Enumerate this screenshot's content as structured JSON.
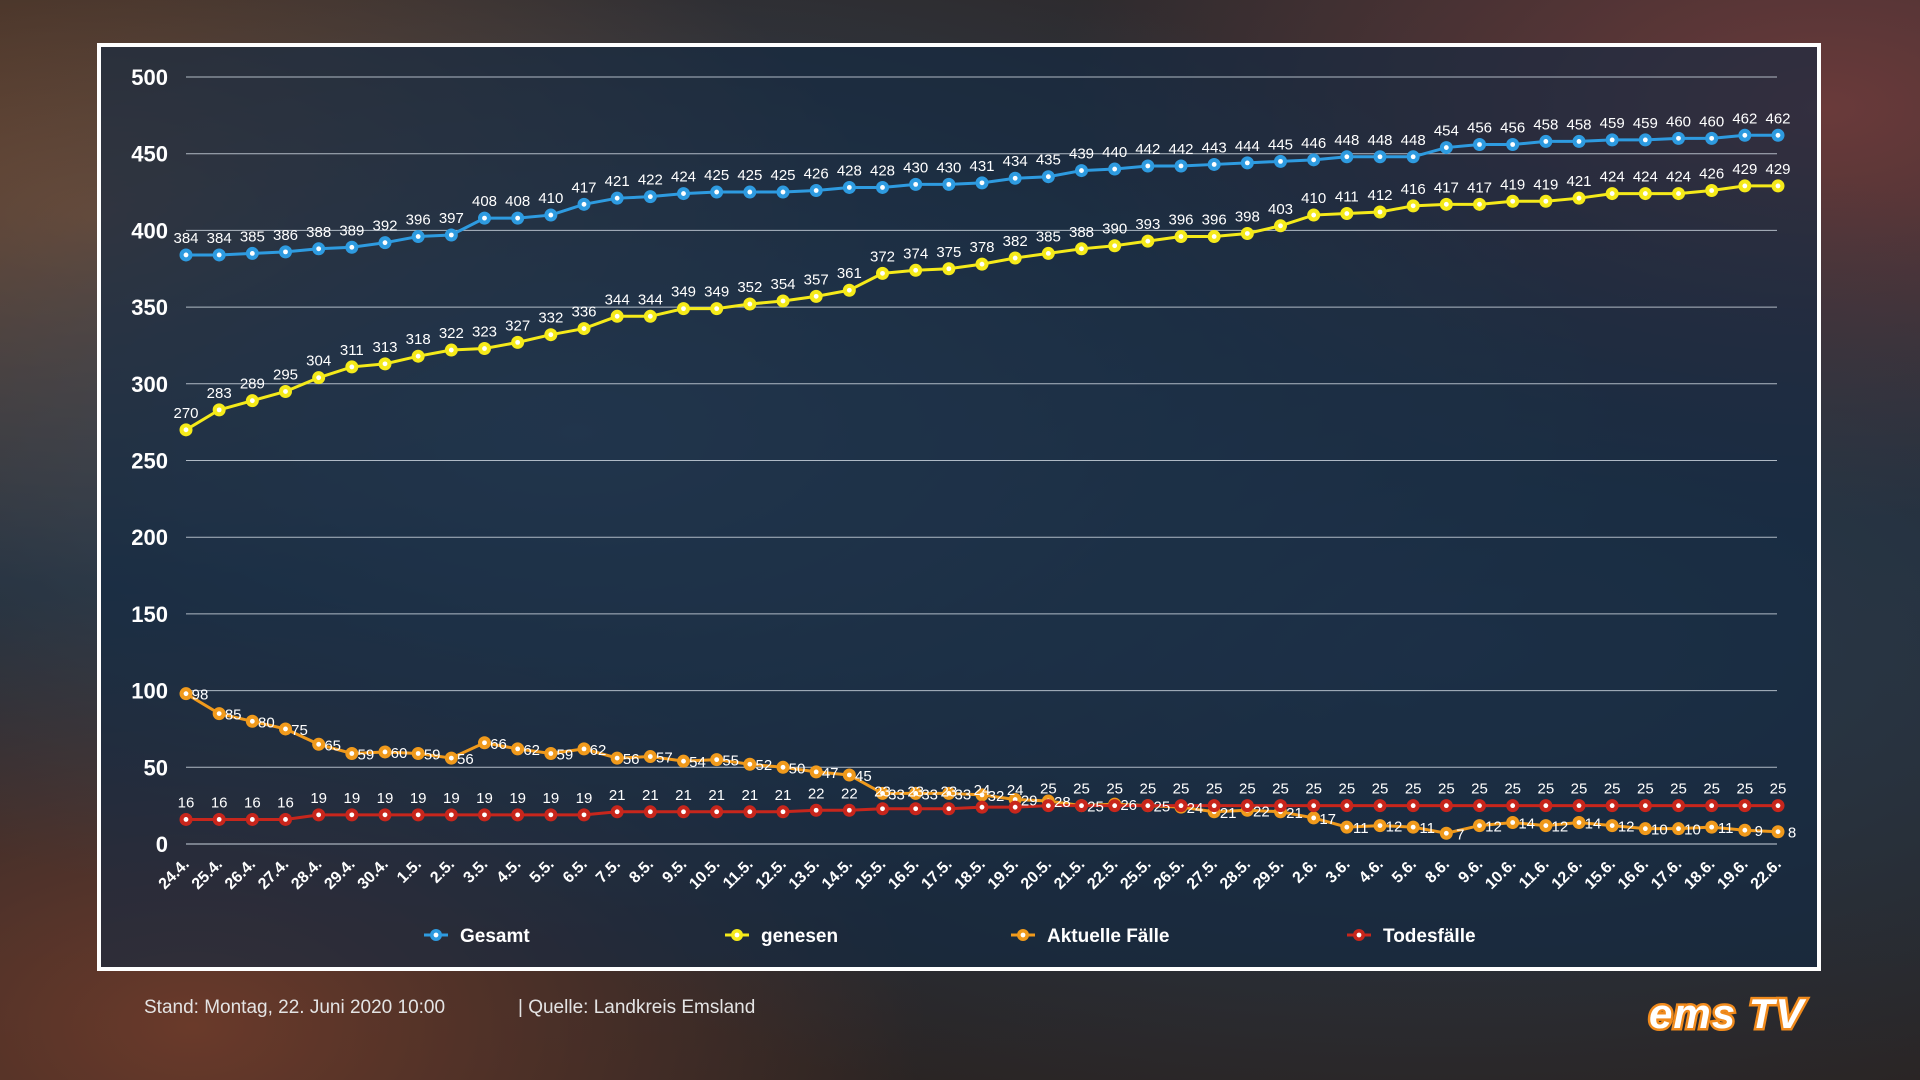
{
  "chart_data": {
    "type": "line",
    "categories": [
      "24.4.",
      "25.4.",
      "26.4.",
      "27.4.",
      "28.4.",
      "29.4.",
      "30.4.",
      "1.5.",
      "2.5.",
      "3.5.",
      "4.5.",
      "5.5.",
      "6.5.",
      "7.5.",
      "8.5.",
      "9.5.",
      "10.5.",
      "11.5.",
      "12.5.",
      "13.5.",
      "14.5.",
      "15.5.",
      "16.5.",
      "17.5.",
      "18.5.",
      "19.5.",
      "20.5.",
      "21.5.",
      "22.5.",
      "25.5.",
      "26.5.",
      "27.5.",
      "28.5.",
      "29.5.",
      "2.6.",
      "3.6.",
      "4.6.",
      "5.6.",
      "8.6.",
      "9.6.",
      "10.6.",
      "11.6.",
      "12.6.",
      "15.6.",
      "16.6.",
      "17.6.",
      "18.6.",
      "19.6.",
      "22.6."
    ],
    "ylim": [
      0,
      500
    ],
    "yticks": [
      0,
      50,
      100,
      150,
      200,
      250,
      300,
      350,
      400,
      450,
      500
    ],
    "grid": true,
    "legend_position": "bottom",
    "series": [
      {
        "name": "Gesamt",
        "color": "#2e9be0",
        "values": [
          384,
          384,
          385,
          386,
          388,
          389,
          392,
          396,
          397,
          408,
          408,
          410,
          417,
          421,
          422,
          424,
          425,
          425,
          425,
          426,
          428,
          428,
          430,
          430,
          431,
          434,
          435,
          439,
          440,
          442,
          442,
          443,
          444,
          445,
          446,
          448,
          448,
          448,
          454,
          456,
          456,
          458,
          458,
          459,
          459,
          460,
          460,
          462,
          462
        ]
      },
      {
        "name": "genesen",
        "color": "#f5ea1a",
        "values": [
          270,
          283,
          289,
          295,
          304,
          311,
          313,
          318,
          322,
          323,
          327,
          332,
          336,
          344,
          344,
          349,
          349,
          352,
          354,
          357,
          361,
          372,
          374,
          375,
          378,
          382,
          385,
          388,
          390,
          393,
          396,
          396,
          398,
          403,
          410,
          411,
          412,
          416,
          417,
          417,
          419,
          419,
          421,
          424,
          424,
          424,
          426,
          429,
          429
        ]
      },
      {
        "name": "Aktuelle Fälle",
        "color": "#f09a1c",
        "values": [
          98,
          85,
          80,
          75,
          65,
          59,
          60,
          59,
          56,
          66,
          62,
          59,
          62,
          56,
          57,
          54,
          55,
          52,
          50,
          47,
          45,
          33,
          33,
          33,
          32,
          29,
          28,
          25,
          26,
          25,
          24,
          21,
          22,
          21,
          17,
          11,
          12,
          11,
          7,
          12,
          14,
          12,
          14,
          12,
          10,
          10,
          11,
          9,
          8
        ]
      },
      {
        "name": "Todesfälle",
        "color": "#c8261c",
        "values": [
          16,
          16,
          16,
          16,
          19,
          19,
          19,
          19,
          19,
          19,
          19,
          19,
          19,
          21,
          21,
          21,
          21,
          21,
          21,
          22,
          22,
          23,
          23,
          23,
          24,
          24,
          25,
          25,
          25,
          25,
          25,
          25,
          25,
          25,
          25,
          25,
          25,
          25,
          25,
          25,
          25,
          25,
          25,
          25,
          25,
          25,
          25,
          25,
          25
        ]
      }
    ]
  },
  "footer": {
    "stand": "Stand:  Montag, 22. Juni 2020 10:00",
    "quelle": "|  Quelle:  Landkreis Emsland"
  },
  "logo": {
    "text": "ems TV",
    "color": "#f08a1c"
  }
}
